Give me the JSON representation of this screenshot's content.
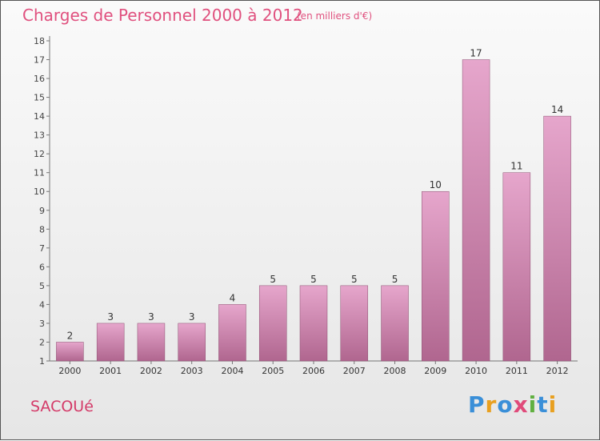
{
  "chart_data": {
    "type": "bar",
    "title": "Charges de Personnel 2000 à 2012",
    "subtitle": "(en milliers d'€)",
    "categories": [
      "2000",
      "2001",
      "2002",
      "2003",
      "2004",
      "2005",
      "2006",
      "2007",
      "2008",
      "2009",
      "2010",
      "2011",
      "2012"
    ],
    "values": [
      2,
      3,
      3,
      3,
      4,
      5,
      5,
      5,
      5,
      10,
      17,
      11,
      14
    ],
    "ylim": [
      1,
      18
    ],
    "yticks": [
      1,
      2,
      3,
      4,
      5,
      6,
      7,
      8,
      9,
      10,
      11,
      12,
      13,
      14,
      15,
      16,
      17,
      18
    ],
    "bar_color": "#d98bb4",
    "xlabel": "",
    "ylabel": "",
    "grid": false
  },
  "commune": "SACOUé",
  "logo": {
    "p": "P",
    "r": "r",
    "o": "o",
    "x": "x",
    "i": "i",
    "t": "t",
    "i2": "i"
  }
}
